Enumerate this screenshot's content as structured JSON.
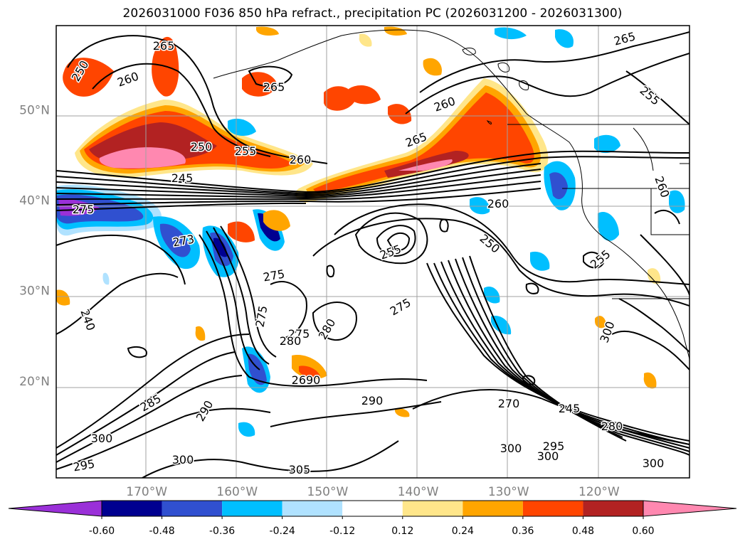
{
  "title": "2026031000 F036 850 hPa refract., precipitation PC (2026031200 - 2026031300)",
  "lat_labels": [
    {
      "text": "50°N",
      "lat": 50
    },
    {
      "text": "40°N",
      "lat": 40
    },
    {
      "text": "30°N",
      "lat": 30
    },
    {
      "text": "20°N",
      "lat": 20
    }
  ],
  "lon_labels": [
    {
      "text": "170°W",
      "lon": -170
    },
    {
      "text": "160°W",
      "lon": -160
    },
    {
      "text": "150°W",
      "lon": -150
    },
    {
      "text": "140°W",
      "lon": -140
    },
    {
      "text": "130°W",
      "lon": -130
    },
    {
      "text": "120°W",
      "lon": -120
    }
  ],
  "colorbar": {
    "ticks": [
      "-0.60",
      "-0.48",
      "-0.36",
      "-0.24",
      "-0.12",
      "0.12",
      "0.24",
      "0.36",
      "0.48",
      "0.60"
    ],
    "colors": [
      "#9a30d8",
      "#000090",
      "#3050d0",
      "#00bfff",
      "#b0e2ff",
      "#ffffff",
      "#ffe68a",
      "#ffa500",
      "#ff4500",
      "#b22222",
      "#ff88b0"
    ]
  },
  "contour_labels": [
    "250",
    "260",
    "265",
    "265",
    "260",
    "250",
    "255",
    "260",
    "265",
    "245",
    "275",
    "260",
    "255",
    "250",
    "273",
    "275",
    "275",
    "275",
    "280",
    "280",
    "2690",
    "270",
    "245",
    "290",
    "285",
    "290",
    "300",
    "295",
    "300",
    "300",
    "295",
    "300",
    "305",
    "300",
    "300",
    "240",
    "275",
    "260",
    "255",
    "265",
    "255",
    "280"
  ],
  "colors": {
    "grid": "#a0a0a0",
    "contour": "#000000",
    "axis_label": "#808080"
  }
}
